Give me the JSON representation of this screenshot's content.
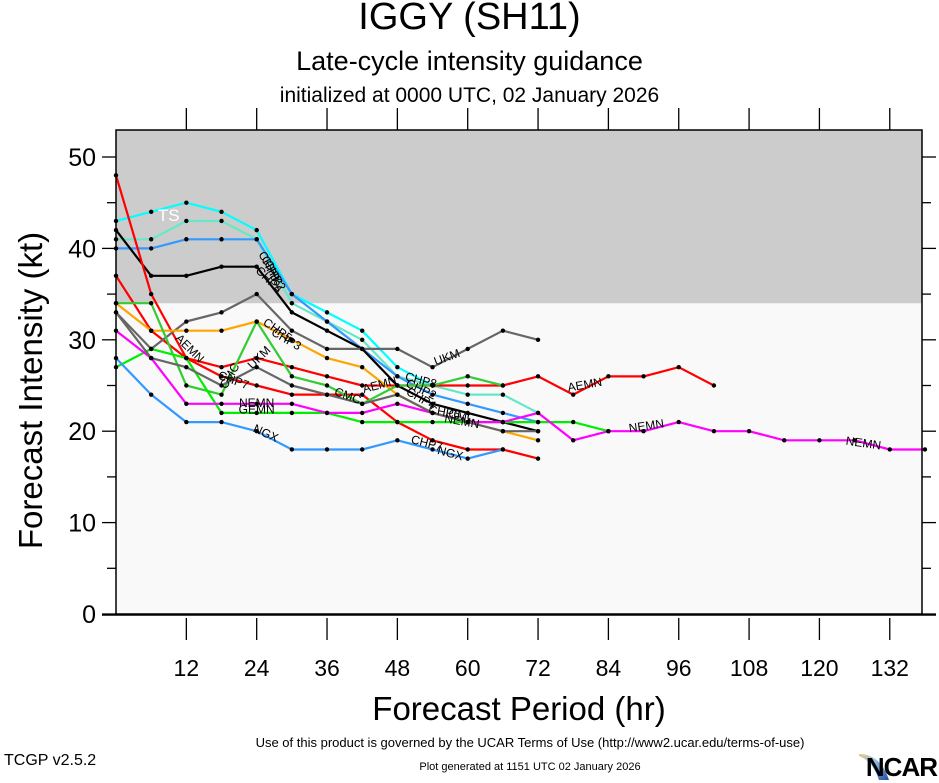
{
  "header": {
    "title": "IGGY (SH11)",
    "subtitle": "Late-cycle intensity guidance",
    "init_line": "initialized at 0000 UTC, 02 January 2026"
  },
  "footer": {
    "version": "TCGP v2.5.2",
    "terms": "Use of this product is governed by the UCAR Terms of Use (http://www2.ucar.edu/terms-of-use)",
    "generated": "Plot generated at 1151 UTC   02 January 2026",
    "logo": "NCAR"
  },
  "chart_data": {
    "type": "line",
    "title": "IGGY (SH11)",
    "xlabel": "Forecast Period (hr)",
    "ylabel": "Forecast Intensity (kt)",
    "xlim": [
      0,
      137.5
    ],
    "ylim": [
      0,
      50
    ],
    "xticks": [
      12,
      24,
      36,
      48,
      60,
      72,
      84,
      96,
      108,
      120,
      132
    ],
    "yticks": [
      0,
      10,
      20,
      30,
      40,
      50
    ],
    "grid": false,
    "shaded_band": {
      "label": "TS",
      "from": 34,
      "to": 50,
      "color": "#cccccc"
    },
    "series": [
      {
        "name": "CHP8",
        "color": "#00ffff",
        "x": [
          0,
          6,
          12,
          18,
          24,
          30,
          36,
          42,
          48,
          54
        ],
        "y": [
          43,
          44,
          45,
          44,
          42,
          35,
          33,
          31,
          27,
          25
        ]
      },
      {
        "name": "CHP6",
        "color": "#66e8c8",
        "x": [
          0,
          6,
          12,
          18,
          24,
          30,
          36,
          42,
          48,
          54,
          60,
          66,
          72
        ],
        "y": [
          41,
          41,
          43,
          43,
          41,
          34,
          32,
          30,
          26,
          25,
          24,
          24,
          22
        ]
      },
      {
        "name": "CHP2",
        "color": "#3399ff",
        "x": [
          0,
          6,
          12,
          18,
          24,
          30,
          36,
          42,
          48,
          54,
          60,
          66,
          72
        ],
        "y": [
          40,
          40,
          41,
          41,
          41,
          35,
          32,
          29,
          26,
          24,
          23,
          22,
          21
        ]
      },
      {
        "name": "CHP4",
        "color": "#000000",
        "x": [
          0,
          6,
          12,
          18,
          24,
          30,
          36,
          42,
          48,
          54,
          60,
          66,
          72
        ],
        "y": [
          42,
          37,
          37,
          38,
          38,
          33,
          31,
          29,
          25,
          23,
          22,
          21,
          20
        ]
      },
      {
        "name": "AEMN",
        "color": "#ff0000",
        "x": [
          0,
          6,
          12,
          18,
          24,
          30,
          36,
          42,
          48,
          54,
          60,
          66,
          72,
          78,
          84,
          90,
          96,
          102
        ],
        "y": [
          48,
          35,
          28,
          27,
          28,
          27,
          26,
          25,
          25,
          25,
          25,
          25,
          26,
          24,
          26,
          26,
          27,
          25
        ]
      },
      {
        "name": "CHP7",
        "color": "#ff0000",
        "x": [
          0,
          6,
          12,
          18,
          24,
          30,
          36,
          42,
          48,
          54,
          60,
          66,
          72
        ],
        "y": [
          37,
          31,
          28,
          26,
          25,
          24,
          24,
          24,
          21,
          19,
          18,
          18,
          17
        ]
      },
      {
        "name": "UKM",
        "color": "#666666",
        "x": [
          0,
          6,
          12,
          18,
          24,
          30,
          36,
          42,
          48,
          54,
          60,
          66,
          72
        ],
        "y": [
          33,
          29,
          32,
          33,
          35,
          31,
          29,
          29,
          29,
          27,
          29,
          31,
          30
        ]
      },
      {
        "name": "CHP3",
        "color": "#ffa500",
        "x": [
          0,
          6,
          12,
          18,
          24,
          30,
          36,
          42,
          48,
          54,
          60,
          66,
          72
        ],
        "y": [
          34,
          31,
          31,
          31,
          32,
          30,
          28,
          27,
          24,
          22,
          21,
          20,
          19
        ]
      },
      {
        "name": "CHP5",
        "color": "#33cc33",
        "x": [
          0,
          6,
          12,
          18,
          24,
          30,
          36,
          42,
          48,
          54,
          60,
          66
        ],
        "y": [
          34,
          34,
          25,
          24,
          32,
          26,
          25,
          23,
          25,
          25,
          26,
          25
        ]
      },
      {
        "name": "GEMN",
        "color": "#00ee00",
        "x": [
          0,
          6,
          12,
          18,
          24,
          30,
          36,
          42,
          48,
          54,
          60,
          66,
          72,
          78,
          84
        ],
        "y": [
          27,
          29,
          28,
          22,
          22,
          22,
          22,
          21,
          21,
          21,
          21,
          21,
          21,
          21,
          20
        ]
      },
      {
        "name": "NEMN",
        "color": "#ff00ff",
        "x": [
          0,
          6,
          12,
          18,
          24,
          30,
          36,
          42,
          48,
          54,
          60,
          66,
          72,
          78,
          84,
          90,
          96,
          102,
          108,
          114,
          120,
          126,
          132,
          138
        ],
        "y": [
          31,
          28,
          23,
          23,
          23,
          23,
          22,
          22,
          23,
          22,
          21,
          21,
          22,
          19,
          20,
          20,
          21,
          20,
          20,
          19,
          19,
          19,
          18,
          18
        ]
      },
      {
        "name": "NGX",
        "color": "#3399ff",
        "x": [
          0,
          6,
          12,
          18,
          24,
          30,
          36,
          42,
          48,
          54,
          60,
          66
        ],
        "y": [
          28,
          24,
          21,
          21,
          20,
          18,
          18,
          18,
          19,
          18,
          17,
          18
        ]
      },
      {
        "name": "CMC",
        "color": "#666666",
        "x": [
          0,
          6,
          12,
          18,
          24,
          30,
          36,
          42,
          48,
          54,
          60,
          66,
          72
        ],
        "y": [
          33,
          28,
          27,
          25,
          27,
          25,
          24,
          23,
          24,
          22,
          21,
          20,
          20
        ]
      }
    ],
    "annotations": [
      {
        "text": "TS",
        "x": 9,
        "y": 43.5,
        "color": "#ffffff"
      },
      {
        "text": "CHP8",
        "x": 26,
        "y": 38,
        "angle": 62
      },
      {
        "text": "CHP6",
        "x": 26.5,
        "y": 37.5,
        "angle": 62
      },
      {
        "text": "CHP2",
        "x": 27,
        "y": 37,
        "angle": 62
      },
      {
        "text": "CHP4",
        "x": 26,
        "y": 36.5,
        "angle": 45
      },
      {
        "text": "AEMN",
        "x": 12.5,
        "y": 29,
        "angle": 45
      },
      {
        "text": "CMC",
        "x": 19.5,
        "y": 26,
        "angle": -60
      },
      {
        "text": "CHP7",
        "x": 20,
        "y": 25.5,
        "angle": 20
      },
      {
        "text": "NEMN",
        "x": 24,
        "y": 23,
        "angle": 0
      },
      {
        "text": "GEMN",
        "x": 24,
        "y": 22.3,
        "angle": 0
      },
      {
        "text": "NGX",
        "x": 25.5,
        "y": 19.7,
        "angle": 25
      },
      {
        "text": "UKM",
        "x": 24.5,
        "y": 28,
        "angle": -45
      },
      {
        "text": "CHP5",
        "x": 27.5,
        "y": 31,
        "angle": 35
      },
      {
        "text": "CHP3",
        "x": 29,
        "y": 30,
        "angle": 30
      },
      {
        "text": "AEMN",
        "x": 45,
        "y": 25,
        "angle": -15
      },
      {
        "text": "CMC",
        "x": 39.5,
        "y": 23.8,
        "angle": 20
      },
      {
        "text": "UKM",
        "x": 56.5,
        "y": 28,
        "angle": -20
      },
      {
        "text": "CHP8",
        "x": 52,
        "y": 25.5,
        "angle": 15
      },
      {
        "text": "CHP2",
        "x": 52,
        "y": 24.5,
        "angle": 25
      },
      {
        "text": "CHP4",
        "x": 52,
        "y": 23.5,
        "angle": 30
      },
      {
        "text": "CHP6",
        "x": 56,
        "y": 22,
        "angle": 10
      },
      {
        "text": "CMC",
        "x": 59,
        "y": 21.6,
        "angle": 10
      },
      {
        "text": "NEMN",
        "x": 59,
        "y": 21,
        "angle": 10
      },
      {
        "text": "CHP7",
        "x": 53,
        "y": 18.6,
        "angle": 15
      },
      {
        "text": "NGX",
        "x": 57,
        "y": 17.5,
        "angle": 15
      },
      {
        "text": "AEMN",
        "x": 80,
        "y": 25,
        "angle": -10
      },
      {
        "text": "NEMN",
        "x": 90.5,
        "y": 20.5,
        "angle": -8
      },
      {
        "text": "NEMN",
        "x": 127.5,
        "y": 18.6,
        "angle": 8
      }
    ]
  }
}
